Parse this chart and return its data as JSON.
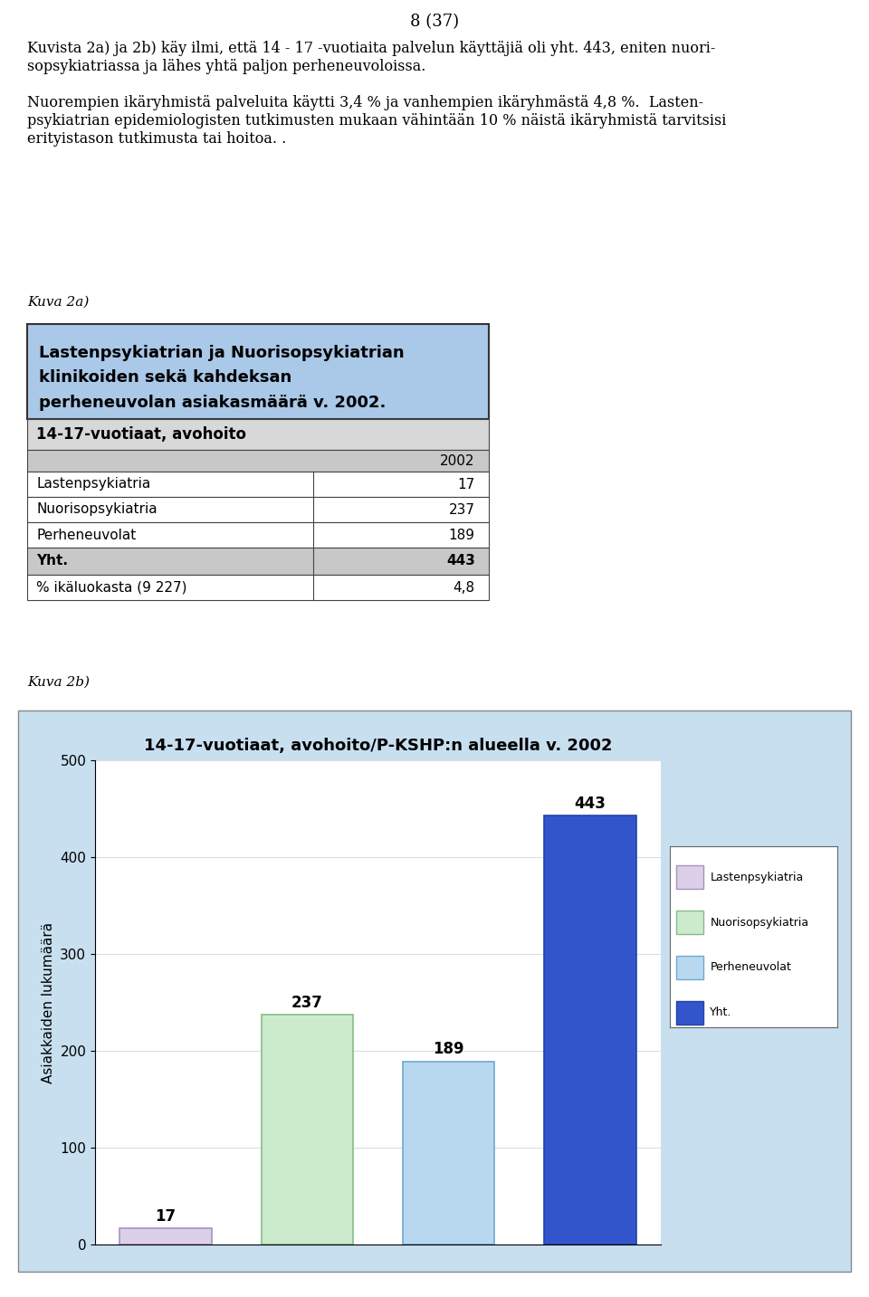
{
  "page_header": "8 (37)",
  "para1_line1": "Kuvista 2a) ja 2b) käy ilmi, että 14 - 17 -vuotiaita palvelun käyttäjiä oli yht. 443, eniten nuori-",
  "para1_line2": "sopsykiatriassa ja lähes yhtä paljon perheneuvoloissa.",
  "para2_line1": "Nuorempien ikäryhmistä palveluita käytti 3,4 % ja vanhempien ikäryhmästä 4,8 %.  Lasten-",
  "para2_line2": "psykiatrian epidemiologisten tutkimusten mukaan vähintään 10 % näistä ikäryhmistä tarvitsisi",
  "para2_line3": "erityistason tutkimusta tai hoitoa. .",
  "kuva2a_label": "Kuva 2a)",
  "table_header_bg": "#aac8e8",
  "table_header_text_line1": "Lastenpsykiatrian ja Nuorisopsykiatrian",
  "table_header_text_line2": "klinikoiden sekä kahdeksan",
  "table_header_text_line3": "perheneuvolan asiakasmäärä v. 2002.",
  "table_subheader": "14-17-vuotiaat, avohoito",
  "table_col_header": "2002",
  "table_rows": [
    [
      "Lastenpsykiatria",
      "17"
    ],
    [
      "Nuorisopsykiatria",
      "237"
    ],
    [
      "Perheneuvolat",
      "189"
    ]
  ],
  "table_bold_row": [
    "Yht.",
    "443"
  ],
  "table_last_row": [
    "% ikäluokasta (9 227)",
    "4,8"
  ],
  "kuva2b_label": "Kuva 2b)",
  "chart_title": "14-17-vuotiaat, avohoito/P-KSHP:n alueella v. 2002",
  "chart_bg_color": "#c8dff0",
  "categories": [
    "Lastenpsykiatria",
    "Nuorisopsykiatria",
    "Perheneuvolat",
    "Yht."
  ],
  "values": [
    17,
    237,
    189,
    443
  ],
  "bar_colors": [
    "#dcd0e8",
    "#ccebcc",
    "#b8d8f0",
    "#3355cc"
  ],
  "bar_edge_colors": [
    "#a890c0",
    "#88bb88",
    "#70a8d0",
    "#2244aa"
  ],
  "ylabel": "Asiakkaiden lukumäärä",
  "ylim": [
    0,
    500
  ],
  "yticks": [
    0,
    100,
    200,
    300,
    400,
    500
  ],
  "legend_labels": [
    "Lastenpsykiatria",
    "Nuorisopsykiatria",
    "Perheneuvolat",
    "Yht."
  ],
  "legend_colors": [
    "#dcd0e8",
    "#ccebcc",
    "#b8d8f0",
    "#3355cc"
  ],
  "legend_edge_colors": [
    "#a890c0",
    "#88bb88",
    "#70a8d0",
    "#2244aa"
  ]
}
